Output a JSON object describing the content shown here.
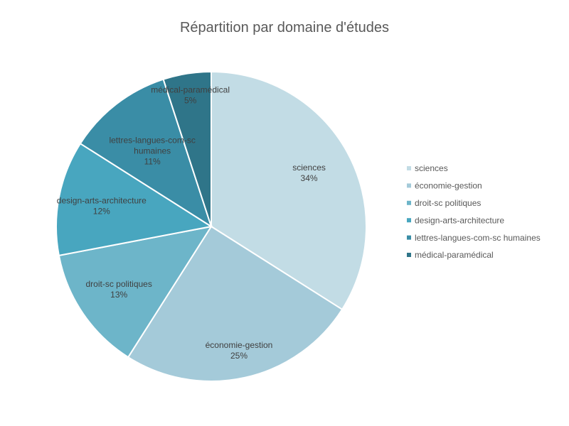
{
  "chart_data": {
    "type": "pie",
    "title": "Répartition par domaine d'études",
    "slices": [
      {
        "label": "sciences",
        "label_lines": [
          "sciences"
        ],
        "value": 34,
        "value_label": "34%",
        "color": "#c2dce5"
      },
      {
        "label": "économie-gestion",
        "label_lines": [
          "économie-gestion"
        ],
        "value": 25,
        "value_label": "25%",
        "color": "#a4cad9"
      },
      {
        "label": "droit-sc politiques",
        "label_lines": [
          "droit-sc politiques"
        ],
        "value": 13,
        "value_label": "13%",
        "color": "#6db5c9"
      },
      {
        "label": "design-arts-architecture",
        "label_lines": [
          "design-arts-architecture"
        ],
        "value": 12,
        "value_label": "12%",
        "color": "#48a6bf"
      },
      {
        "label": "lettres-langues-com-sc humaines",
        "label_lines": [
          "lettres-langues-com-sc",
          "humaines"
        ],
        "value": 11,
        "value_label": "11%",
        "color": "#3a8da6"
      },
      {
        "label": "médical-paramédical",
        "label_lines": [
          "médical-paramédical"
        ],
        "value": 5,
        "value_label": "5%",
        "color": "#2f7589"
      }
    ],
    "legend_position": "right"
  }
}
